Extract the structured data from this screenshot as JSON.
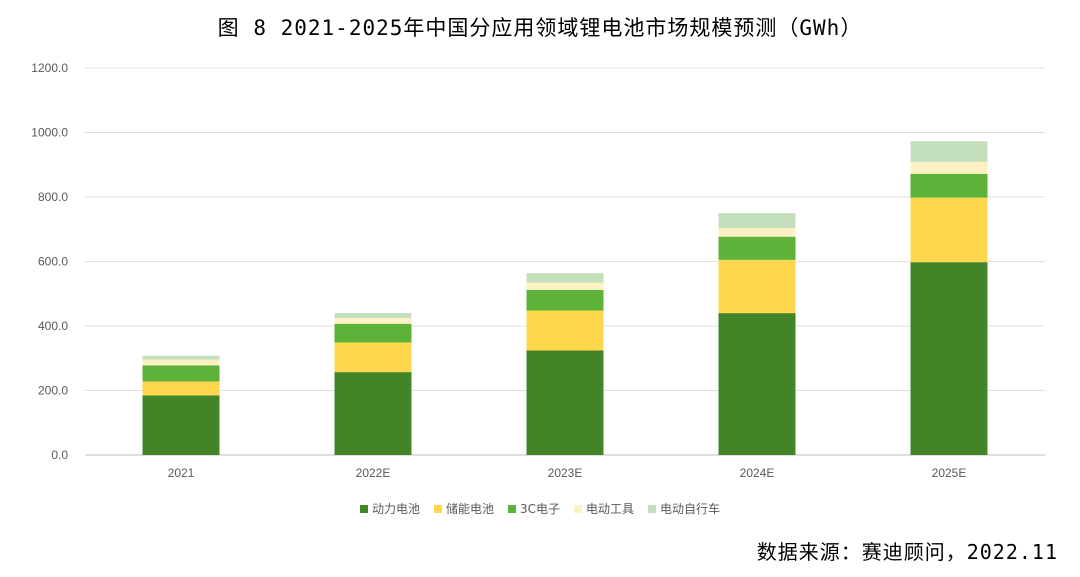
{
  "title": "图 8  2021-2025年中国分应用领域锂电池市场规模预测（GWh）",
  "source": "数据来源：赛迪顾问，2022.11",
  "colors": {
    "power_battery": "#438426",
    "energy_storage": "#ffd74e",
    "consumer_3c": "#5db33a",
    "power_tools": "#fdf0c2",
    "ebike": "#c3dfbc",
    "grid": "#e0e0e0",
    "axis": "#bfbfbf"
  },
  "legend": [
    {
      "name": "动力电池",
      "color": "#438426"
    },
    {
      "name": "储能电池",
      "color": "#ffd74e"
    },
    {
      "name": "3C电子",
      "color": "#5db33a"
    },
    {
      "name": "电动工具",
      "color": "#fdf0c2"
    },
    {
      "name": "电动自行车",
      "color": "#c3dfbc"
    }
  ],
  "chart_data": {
    "type": "bar",
    "stacked": true,
    "title": "图 8  2021-2025年中国分应用领域锂电池市场规模预测（GWh）",
    "categories": [
      "2021",
      "2022E",
      "2023E",
      "2024E",
      "2025E"
    ],
    "series": [
      {
        "name": "动力电池",
        "values": [
          185,
          257,
          324,
          440,
          598
        ]
      },
      {
        "name": "储能电池",
        "values": [
          43,
          92,
          124,
          165,
          200
        ]
      },
      {
        "name": "3C电子",
        "values": [
          50,
          58,
          64,
          72,
          74
        ]
      },
      {
        "name": "电动工具",
        "values": [
          18,
          18,
          23,
          27,
          37
        ]
      },
      {
        "name": "电动自行车",
        "values": [
          12,
          15,
          29,
          46,
          64
        ]
      }
    ],
    "ylim": [
      0,
      1200
    ],
    "yticks": [
      "0.0",
      "200.0",
      "400.0",
      "600.0",
      "800.0",
      "1000.0",
      "1200.0"
    ],
    "grid": true,
    "legend_position": "bottom"
  }
}
